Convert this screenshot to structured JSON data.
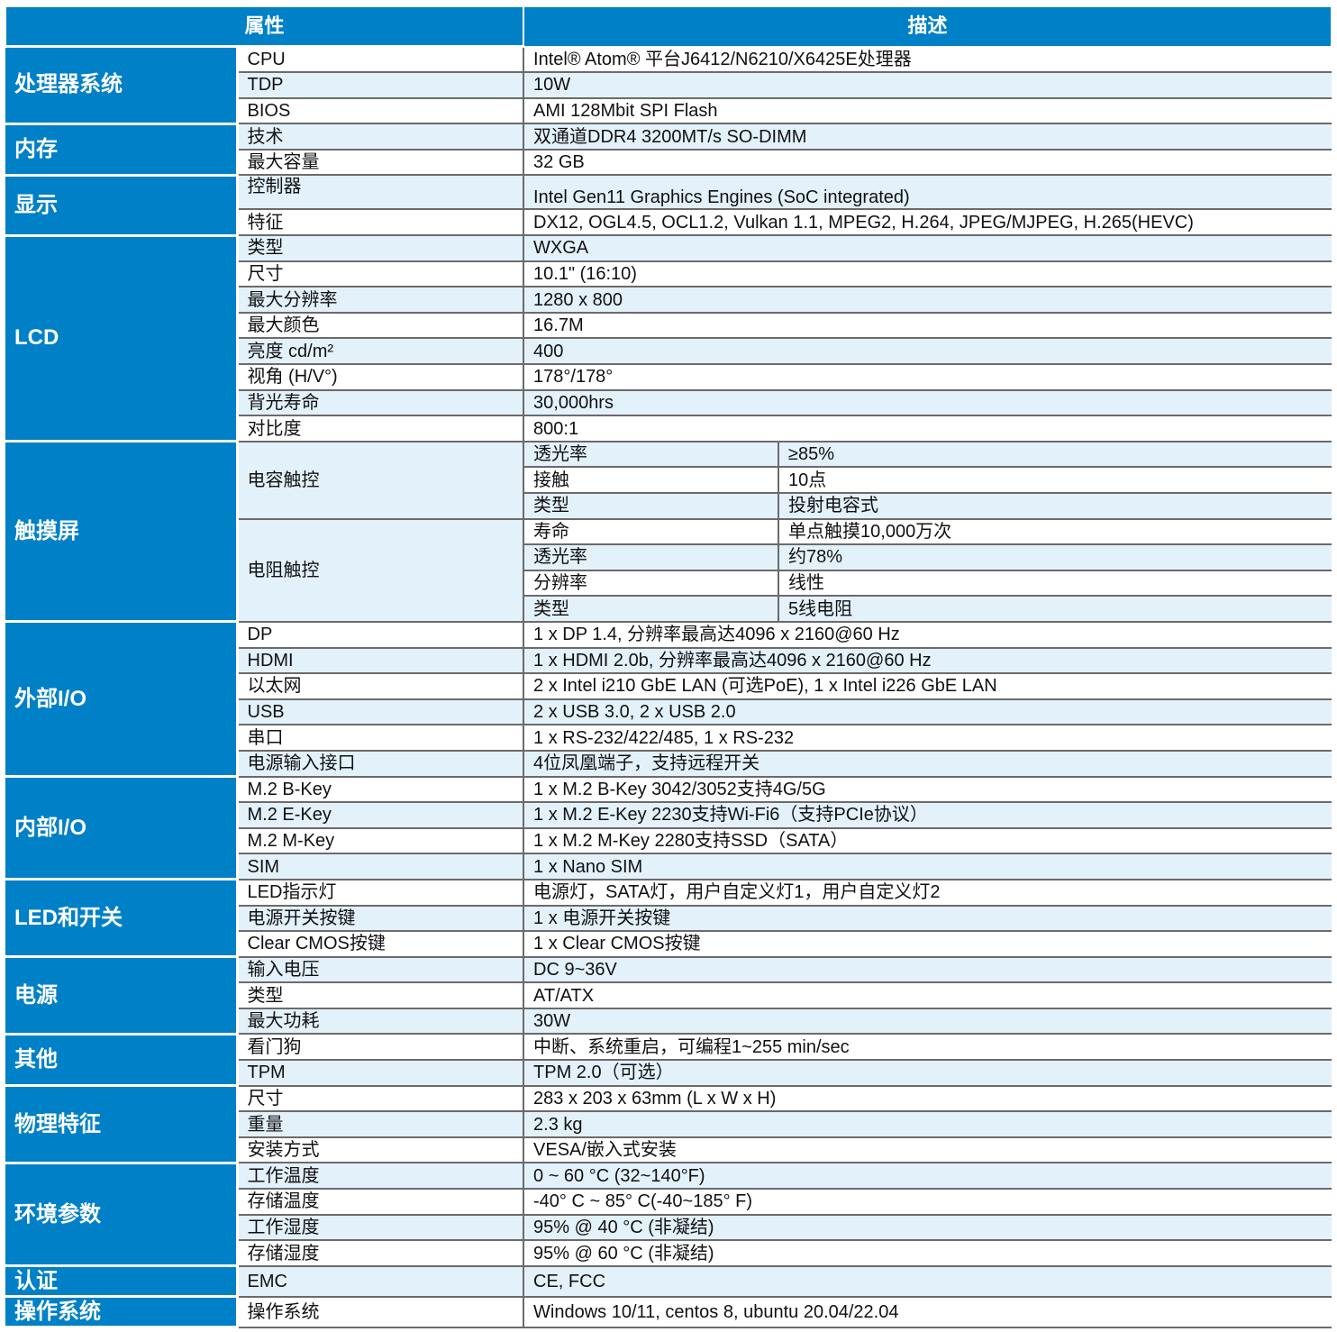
{
  "header": {
    "attribute": "属性",
    "description": "描述"
  },
  "colors": {
    "accent": "#0080c6",
    "row_alt": "#e3f1fb",
    "border": "#6b6b6b"
  },
  "sections": [
    {
      "category": "处理器系统",
      "rows": [
        [
          "CPU",
          "Intel® Atom® 平台J6412/N6210/X6425E处理器"
        ],
        [
          "TDP",
          "10W"
        ],
        [
          "BIOS",
          "AMI 128Mbit SPI Flash"
        ]
      ]
    },
    {
      "category": "内存",
      "rows": [
        [
          "技术",
          "双通道DDR4 3200MT/s SO-DIMM"
        ],
        [
          "最大容量",
          "32 GB"
        ]
      ]
    },
    {
      "category": "显示",
      "rows": [
        [
          "控制器",
          "Intel Gen11 Graphics Engines (SoC integrated)"
        ],
        [
          "特征",
          "DX12, OGL4.5, OCL1.2, Vulkan 1.1, MPEG2, H.264, JPEG/MJPEG, H.265(HEVC)"
        ]
      ]
    },
    {
      "category": "LCD",
      "rows": [
        [
          "类型",
          "WXGA"
        ],
        [
          "尺寸",
          "10.1\" (16:10)"
        ],
        [
          "最大分辨率",
          "1280 x 800"
        ],
        [
          "最大颜色",
          "16.7M"
        ],
        [
          "亮度 cd/m²",
          "400"
        ],
        [
          "视角 (H/V°)",
          "178°/178°"
        ],
        [
          "背光寿命",
          "30,000hrs"
        ],
        [
          "对比度",
          "800:1"
        ]
      ]
    },
    {
      "category": "触摸屏",
      "groups": [
        {
          "label": "电容触控",
          "rows": [
            [
              "透光率",
              "≥85%"
            ],
            [
              "接触",
              "10点"
            ],
            [
              "类型",
              "投射电容式"
            ]
          ]
        },
        {
          "label": "电阻触控",
          "rows": [
            [
              "寿命",
              "单点触摸10,000万次"
            ],
            [
              "透光率",
              "约78%"
            ],
            [
              "分辨率",
              "线性"
            ],
            [
              "类型",
              "5线电阻"
            ]
          ]
        }
      ]
    },
    {
      "category": "外部I/O",
      "rows": [
        [
          "DP",
          "1 x DP 1.4, 分辨率最高达4096 x 2160@60 Hz"
        ],
        [
          "HDMI",
          "1 x HDMI 2.0b, 分辨率最高达4096 x 2160@60 Hz"
        ],
        [
          "以太网",
          "2 x Intel i210 GbE LAN (可选PoE), 1 x Intel i226 GbE LAN"
        ],
        [
          "USB",
          "2 x USB 3.0, 2 x USB 2.0"
        ],
        [
          "串口",
          "1 x RS-232/422/485, 1 x RS-232"
        ],
        [
          "电源输入接口",
          "4位凤凰端子，支持远程开关"
        ]
      ]
    },
    {
      "category": "内部I/O",
      "rows": [
        [
          "M.2 B-Key",
          "1 x M.2 B-Key 3042/3052支持4G/5G"
        ],
        [
          "M.2 E-Key",
          "1 x M.2 E-Key 2230支持Wi-Fi6（支持PCIe协议）"
        ],
        [
          "M.2 M-Key",
          "1 x M.2 M-Key 2280支持SSD（SATA）"
        ],
        [
          "SIM",
          "1 x Nano SIM"
        ]
      ]
    },
    {
      "category": "LED和开关",
      "rows": [
        [
          "LED指示灯",
          "电源灯，SATA灯，用户自定义灯1，用户自定义灯2"
        ],
        [
          "电源开关按键",
          "1 x 电源开关按键"
        ],
        [
          "Clear CMOS按键",
          "1 x Clear CMOS按键"
        ]
      ]
    },
    {
      "category": "电源",
      "rows": [
        [
          "输入电压",
          "DC 9~36V"
        ],
        [
          "类型",
          "AT/ATX"
        ],
        [
          "最大功耗",
          "30W"
        ]
      ]
    },
    {
      "category": "其他",
      "rows": [
        [
          "看门狗",
          "中断、系统重启，可编程1~255 min/sec"
        ],
        [
          "TPM",
          "TPM 2.0（可选）"
        ]
      ]
    },
    {
      "category": "物理特征",
      "rows": [
        [
          "尺寸",
          "283 x 203 x 63mm (L x W x H)"
        ],
        [
          "重量",
          "2.3 kg"
        ],
        [
          "安装方式",
          "VESA/嵌入式安装"
        ]
      ]
    },
    {
      "category": "环境参数",
      "rows": [
        [
          "工作温度",
          "0 ~ 60 °C (32~140°F)"
        ],
        [
          "存储温度",
          "-40° C ~ 85° C(-40~185° F)"
        ],
        [
          "工作湿度",
          "95% @ 40 °C (非凝结)"
        ],
        [
          "存储湿度",
          "95% @ 60 °C (非凝结)"
        ]
      ]
    },
    {
      "category": "认证",
      "rows": [
        [
          "EMC",
          "CE, FCC"
        ]
      ]
    },
    {
      "category": "操作系统",
      "rows": [
        [
          "操作系统",
          "Windows 10/11, centos 8, ubuntu 20.04/22.04"
        ]
      ]
    }
  ]
}
